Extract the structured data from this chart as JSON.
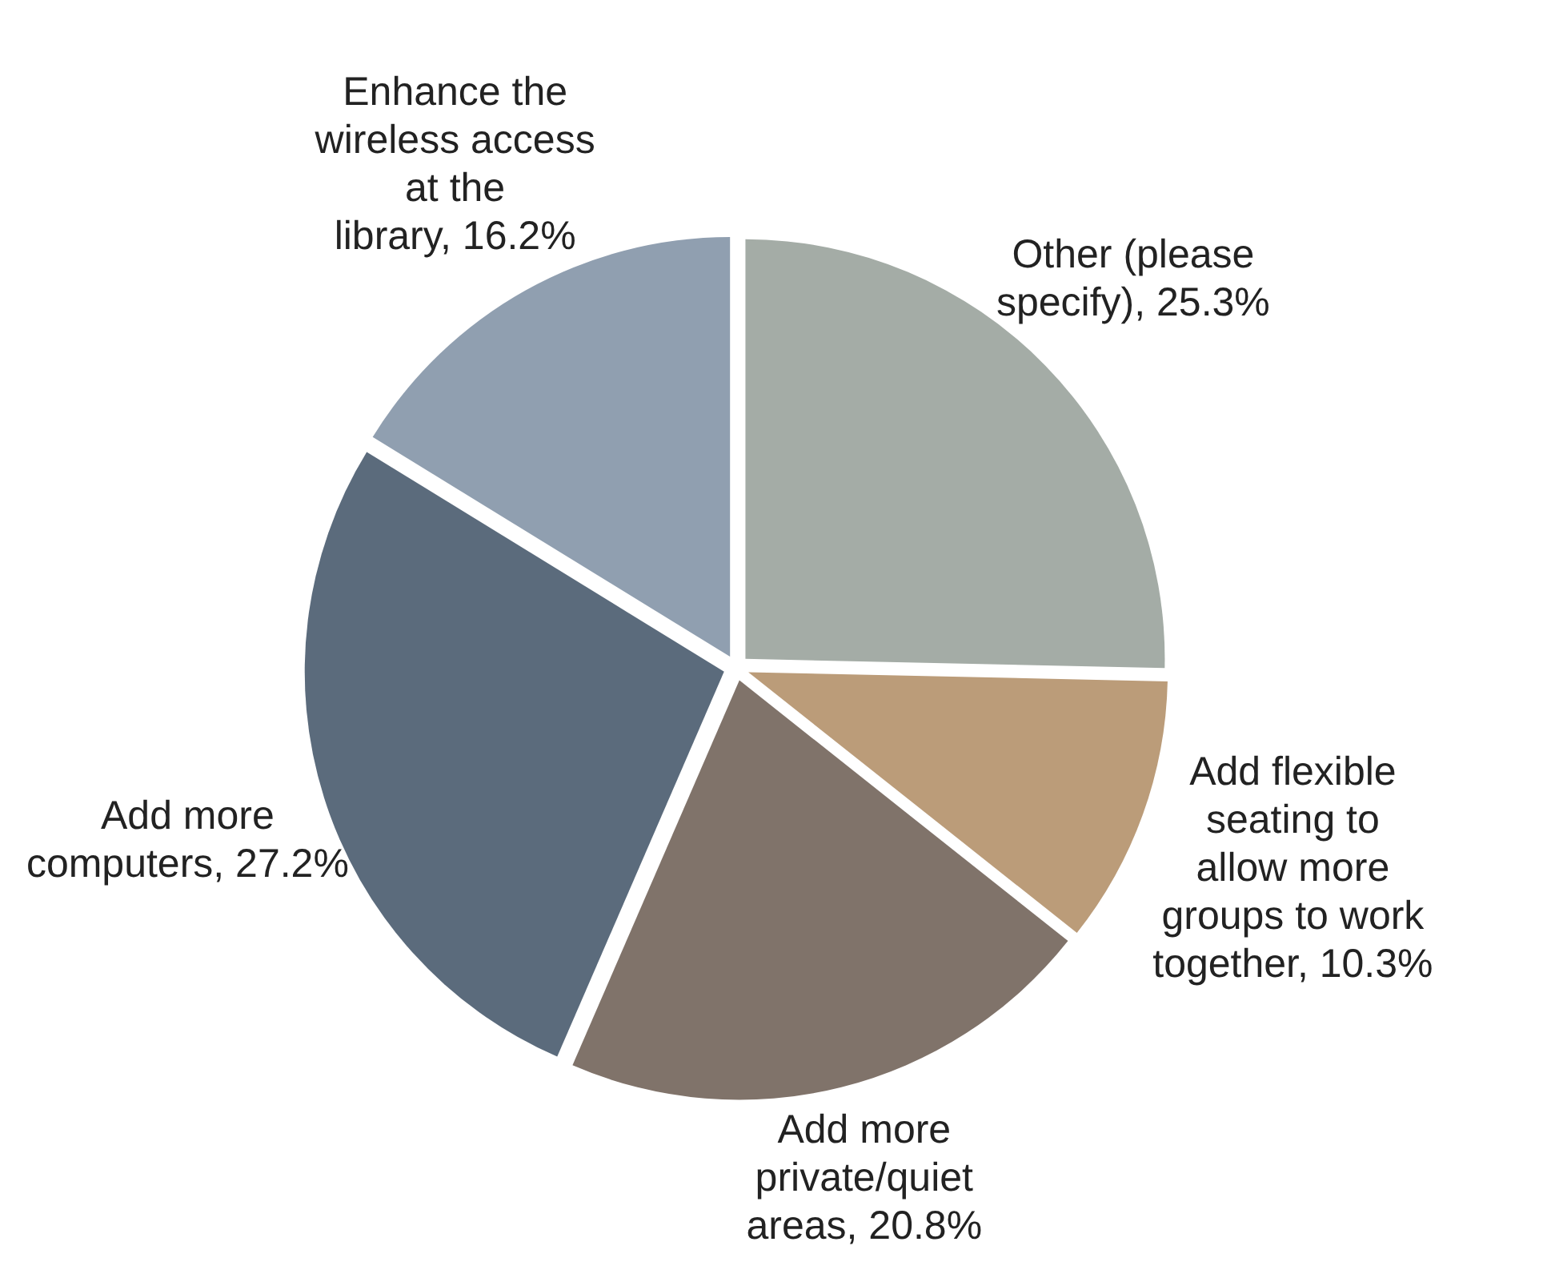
{
  "chart_data": {
    "type": "pie",
    "categories": [
      "Other (please specify)",
      "Add flexible seating to allow more groups to work together",
      "Add more private/quiet areas",
      "Add more computers",
      "Enhance the wireless access at the library"
    ],
    "values": [
      25.3,
      10.3,
      20.8,
      27.2,
      16.2
    ],
    "colors": [
      "#a4aca6",
      "#bb9c79",
      "#80736a",
      "#5b6b7c",
      "#909fb0"
    ],
    "value_labels": [
      "25.3%",
      "10.3%",
      "20.8%",
      "27.2%",
      "16.2%"
    ]
  }
}
